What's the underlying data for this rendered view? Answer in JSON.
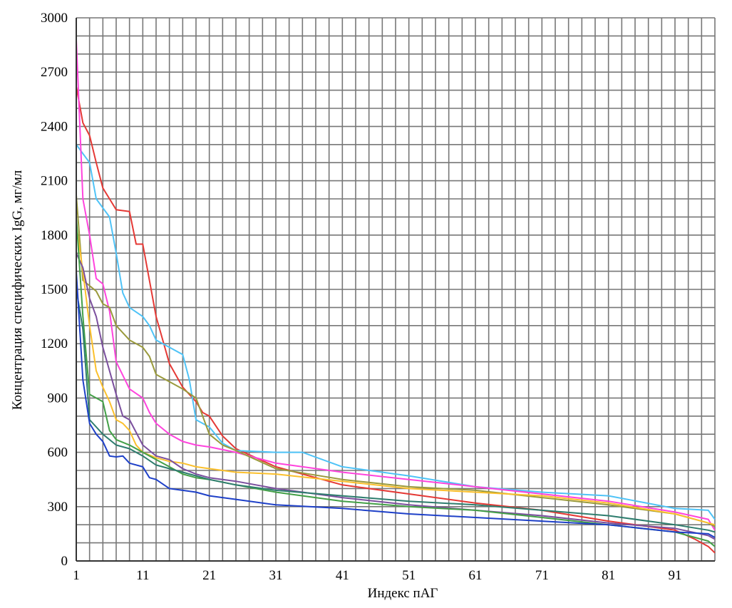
{
  "chart_data": {
    "type": "line",
    "title": "",
    "xlabel": "Индекс пАГ",
    "ylabel": "Концентрация специфических IgG, мг/мл",
    "xlim": [
      1,
      97
    ],
    "ylim": [
      0,
      3000
    ],
    "x_ticks": [
      1,
      11,
      21,
      31,
      41,
      51,
      61,
      71,
      81,
      91
    ],
    "y_ticks": [
      0,
      300,
      600,
      900,
      1200,
      1500,
      1800,
      2100,
      2400,
      2700,
      3000
    ],
    "grid": true,
    "x_grid_step": 2,
    "y_grid_step": 100,
    "series": [
      {
        "color": "#e53935",
        "points": [
          [
            1,
            2620
          ],
          [
            2,
            2420
          ],
          [
            3,
            2350
          ],
          [
            4,
            2200
          ],
          [
            5,
            2060
          ],
          [
            6,
            2000
          ],
          [
            7,
            1940
          ],
          [
            9,
            1930
          ],
          [
            10,
            1750
          ],
          [
            11,
            1750
          ],
          [
            13,
            1350
          ],
          [
            15,
            1090
          ],
          [
            17,
            960
          ],
          [
            19,
            880
          ],
          [
            20,
            820
          ],
          [
            21,
            800
          ],
          [
            23,
            690
          ],
          [
            25,
            620
          ],
          [
            31,
            520
          ],
          [
            41,
            420
          ],
          [
            51,
            370
          ],
          [
            61,
            320
          ],
          [
            71,
            280
          ],
          [
            81,
            220
          ],
          [
            91,
            170
          ],
          [
            94,
            120
          ],
          [
            96,
            80
          ],
          [
            97,
            45
          ]
        ]
      },
      {
        "color": "#4fc3f7",
        "points": [
          [
            1,
            2300
          ],
          [
            2,
            2250
          ],
          [
            3,
            2200
          ],
          [
            4,
            2000
          ],
          [
            5,
            1950
          ],
          [
            6,
            1900
          ],
          [
            7,
            1700
          ],
          [
            8,
            1480
          ],
          [
            9,
            1400
          ],
          [
            11,
            1350
          ],
          [
            12,
            1300
          ],
          [
            13,
            1220
          ],
          [
            15,
            1180
          ],
          [
            17,
            1140
          ],
          [
            18,
            1000
          ],
          [
            19,
            780
          ],
          [
            20,
            760
          ],
          [
            21,
            740
          ],
          [
            23,
            650
          ],
          [
            25,
            610
          ],
          [
            31,
            600
          ],
          [
            35,
            600
          ],
          [
            41,
            520
          ],
          [
            51,
            470
          ],
          [
            61,
            410
          ],
          [
            71,
            380
          ],
          [
            81,
            360
          ],
          [
            91,
            290
          ],
          [
            96,
            280
          ],
          [
            97,
            230
          ]
        ]
      },
      {
        "color": "#ff44dd",
        "points": [
          [
            1,
            2880
          ],
          [
            2,
            2000
          ],
          [
            3,
            1800
          ],
          [
            4,
            1560
          ],
          [
            5,
            1530
          ],
          [
            6,
            1380
          ],
          [
            7,
            1100
          ],
          [
            9,
            950
          ],
          [
            11,
            900
          ],
          [
            12,
            820
          ],
          [
            13,
            760
          ],
          [
            15,
            700
          ],
          [
            17,
            660
          ],
          [
            19,
            640
          ],
          [
            21,
            630
          ],
          [
            25,
            600
          ],
          [
            31,
            540
          ],
          [
            41,
            490
          ],
          [
            51,
            450
          ],
          [
            61,
            410
          ],
          [
            71,
            370
          ],
          [
            81,
            330
          ],
          [
            91,
            270
          ],
          [
            96,
            230
          ],
          [
            97,
            170
          ]
        ]
      },
      {
        "color": "#9a9a3c",
        "points": [
          [
            1,
            2020
          ],
          [
            2,
            1550
          ],
          [
            3,
            1520
          ],
          [
            4,
            1490
          ],
          [
            5,
            1420
          ],
          [
            6,
            1400
          ],
          [
            7,
            1300
          ],
          [
            9,
            1220
          ],
          [
            11,
            1180
          ],
          [
            12,
            1130
          ],
          [
            13,
            1030
          ],
          [
            15,
            990
          ],
          [
            17,
            950
          ],
          [
            19,
            900
          ],
          [
            21,
            700
          ],
          [
            23,
            640
          ],
          [
            25,
            610
          ],
          [
            31,
            510
          ],
          [
            41,
            450
          ],
          [
            51,
            410
          ],
          [
            61,
            390
          ],
          [
            71,
            350
          ],
          [
            81,
            310
          ],
          [
            91,
            260
          ],
          [
            96,
            210
          ],
          [
            97,
            190
          ]
        ]
      },
      {
        "color": "#fbc02d",
        "points": [
          [
            1,
            1860
          ],
          [
            2,
            1600
          ],
          [
            3,
            1300
          ],
          [
            4,
            1050
          ],
          [
            5,
            960
          ],
          [
            6,
            880
          ],
          [
            7,
            780
          ],
          [
            8,
            760
          ],
          [
            9,
            720
          ],
          [
            10,
            640
          ],
          [
            11,
            600
          ],
          [
            13,
            570
          ],
          [
            15,
            550
          ],
          [
            17,
            540
          ],
          [
            19,
            520
          ],
          [
            21,
            510
          ],
          [
            25,
            490
          ],
          [
            31,
            480
          ],
          [
            41,
            440
          ],
          [
            51,
            400
          ],
          [
            61,
            380
          ],
          [
            71,
            360
          ],
          [
            81,
            320
          ],
          [
            91,
            260
          ],
          [
            96,
            210
          ],
          [
            97,
            200
          ]
        ]
      },
      {
        "color": "#7b4f9e",
        "points": [
          [
            1,
            1700
          ],
          [
            2,
            1620
          ],
          [
            3,
            1450
          ],
          [
            4,
            1350
          ],
          [
            5,
            1180
          ],
          [
            6,
            1050
          ],
          [
            7,
            920
          ],
          [
            8,
            800
          ],
          [
            9,
            780
          ],
          [
            11,
            640
          ],
          [
            13,
            580
          ],
          [
            15,
            560
          ],
          [
            17,
            510
          ],
          [
            19,
            480
          ],
          [
            21,
            460
          ],
          [
            25,
            440
          ],
          [
            31,
            400
          ],
          [
            41,
            350
          ],
          [
            51,
            310
          ],
          [
            61,
            280
          ],
          [
            71,
            250
          ],
          [
            81,
            210
          ],
          [
            91,
            180
          ],
          [
            96,
            140
          ],
          [
            97,
            120
          ]
        ]
      },
      {
        "color": "#43a047",
        "points": [
          [
            1,
            1900
          ],
          [
            2,
            1350
          ],
          [
            3,
            920
          ],
          [
            4,
            900
          ],
          [
            5,
            880
          ],
          [
            6,
            720
          ],
          [
            7,
            670
          ],
          [
            9,
            640
          ],
          [
            11,
            600
          ],
          [
            13,
            560
          ],
          [
            15,
            520
          ],
          [
            17,
            480
          ],
          [
            19,
            460
          ],
          [
            21,
            450
          ],
          [
            25,
            420
          ],
          [
            31,
            380
          ],
          [
            41,
            330
          ],
          [
            51,
            300
          ],
          [
            61,
            280
          ],
          [
            71,
            240
          ],
          [
            81,
            200
          ],
          [
            91,
            160
          ],
          [
            96,
            110
          ],
          [
            97,
            80
          ]
        ]
      },
      {
        "color": "#2e7d6e",
        "points": [
          [
            1,
            1500
          ],
          [
            2,
            1280
          ],
          [
            3,
            780
          ],
          [
            4,
            740
          ],
          [
            5,
            700
          ],
          [
            7,
            640
          ],
          [
            9,
            620
          ],
          [
            11,
            580
          ],
          [
            13,
            530
          ],
          [
            15,
            510
          ],
          [
            17,
            490
          ],
          [
            19,
            470
          ],
          [
            21,
            450
          ],
          [
            25,
            420
          ],
          [
            31,
            390
          ],
          [
            41,
            360
          ],
          [
            51,
            330
          ],
          [
            61,
            310
          ],
          [
            71,
            280
          ],
          [
            81,
            250
          ],
          [
            91,
            200
          ],
          [
            96,
            170
          ],
          [
            97,
            160
          ]
        ]
      },
      {
        "color": "#1e40c8",
        "points": [
          [
            1,
            1600
          ],
          [
            2,
            1000
          ],
          [
            3,
            760
          ],
          [
            4,
            700
          ],
          [
            5,
            660
          ],
          [
            6,
            580
          ],
          [
            7,
            575
          ],
          [
            8,
            580
          ],
          [
            9,
            540
          ],
          [
            11,
            520
          ],
          [
            12,
            460
          ],
          [
            13,
            450
          ],
          [
            15,
            400
          ],
          [
            17,
            390
          ],
          [
            19,
            380
          ],
          [
            21,
            360
          ],
          [
            25,
            340
          ],
          [
            31,
            310
          ],
          [
            41,
            290
          ],
          [
            51,
            260
          ],
          [
            61,
            240
          ],
          [
            71,
            220
          ],
          [
            81,
            200
          ],
          [
            91,
            160
          ],
          [
            96,
            150
          ],
          [
            97,
            130
          ]
        ]
      }
    ]
  }
}
